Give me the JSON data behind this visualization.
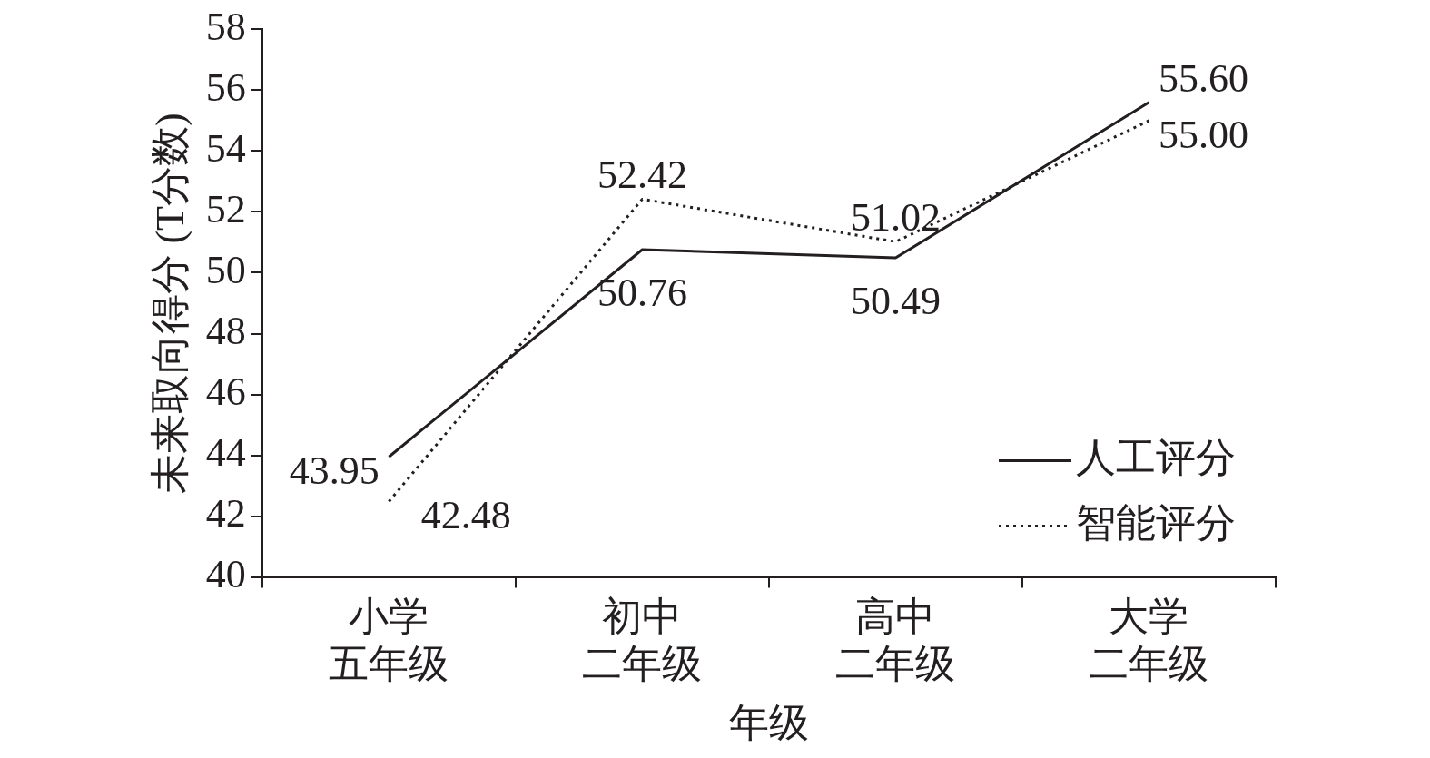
{
  "chart_data": {
    "type": "line",
    "xlabel": "年级",
    "ylabel": "未来取向得分 (T分数)",
    "categories": [
      "小学五年级",
      "初中二年级",
      "高中二年级",
      "大学二年级"
    ],
    "series": [
      {
        "name": "人工评分",
        "color": "#231f20",
        "values": [
          43.95,
          50.76,
          50.49,
          55.6
        ],
        "line_style": "solid",
        "value_labels": [
          "43.95",
          "50.76",
          "50.49",
          "55.60"
        ]
      },
      {
        "name": "智能评分",
        "color": "#231f20",
        "values": [
          42.48,
          52.42,
          51.02,
          55.0
        ],
        "line_style": "dotted",
        "value_labels": [
          "42.48",
          "52.42",
          "51.02",
          "55.00"
        ]
      }
    ],
    "ylim": [
      40,
      58
    ],
    "yticks": [
      40,
      42,
      44,
      46,
      48,
      50,
      52,
      54,
      56,
      58
    ],
    "grid": false,
    "legend": "bottom right",
    "marker": "none"
  }
}
